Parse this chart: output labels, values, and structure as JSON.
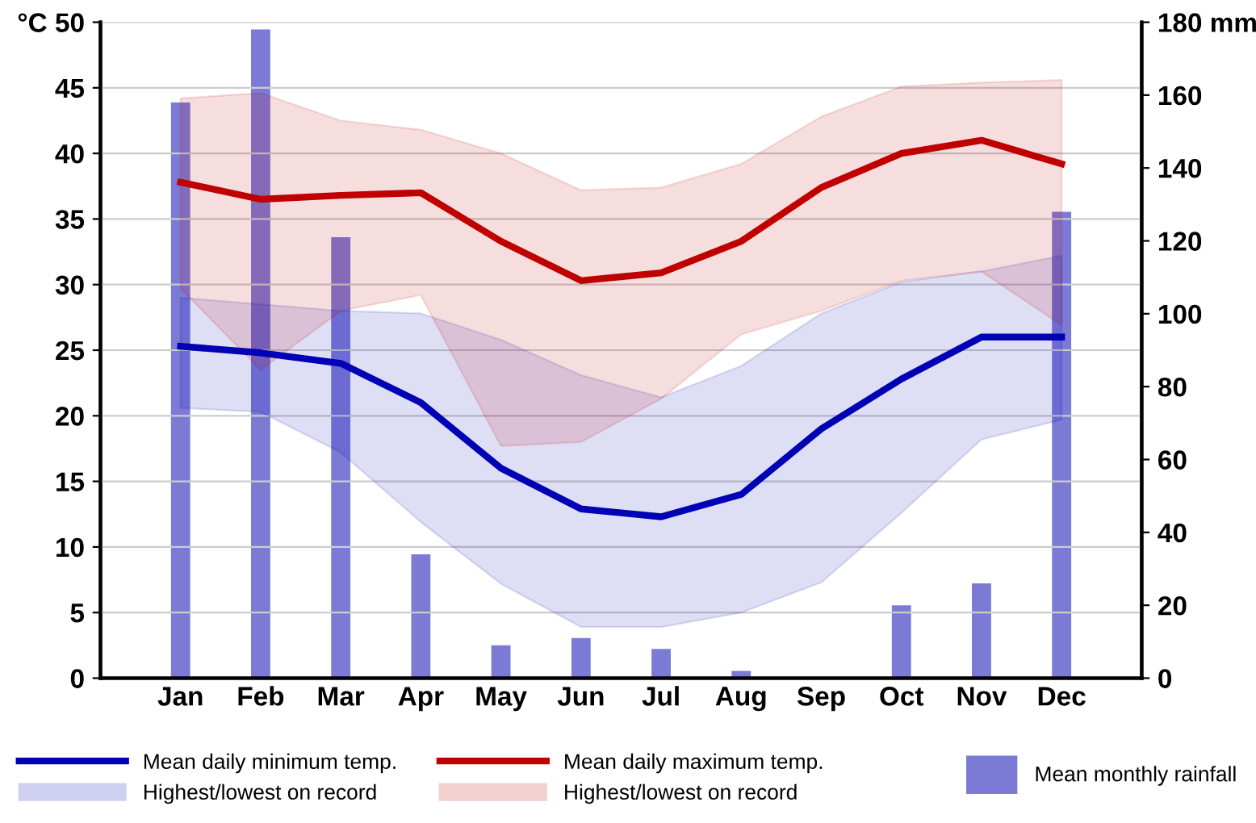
{
  "chart_data": {
    "type": "line",
    "categories": [
      "Jan",
      "Feb",
      "Mar",
      "Apr",
      "May",
      "Jun",
      "Jul",
      "Aug",
      "Sep",
      "Oct",
      "Nov",
      "Dec"
    ],
    "series": [
      {
        "type": "bar",
        "axis": "y2",
        "name": "Mean monthly rainfall",
        "color": "#7b7bd6",
        "values": [
          158,
          178,
          121,
          34,
          9,
          11,
          8,
          2,
          0,
          20,
          26,
          128
        ]
      },
      {
        "name": "Mean daily minimum temp.",
        "color": "#0000b4",
        "values": [
          25.3,
          24.8,
          24,
          21,
          16,
          12.9,
          12.3,
          14,
          19,
          22.8,
          26,
          26
        ],
        "lower": [
          20.6,
          20.3,
          17.2,
          11.9,
          7.2,
          3.9,
          3.9,
          5,
          7.3,
          12.6,
          18.2,
          19.7
        ],
        "upper": [
          29,
          28.5,
          28,
          27.8,
          25.8,
          23.1,
          21.4,
          23.8,
          27.8,
          30.2,
          31,
          32.2
        ]
      },
      {
        "name": "Mean daily maximum temp.",
        "color": "#c00000",
        "values": [
          37.8,
          36.5,
          36.8,
          37,
          33.3,
          30.3,
          30.9,
          33.3,
          37.4,
          40,
          41,
          39.2
        ],
        "lower": [
          29.7,
          23.5,
          28,
          29.2,
          17.7,
          18,
          21.3,
          26.2,
          28,
          30.3,
          31,
          26.9
        ],
        "upper": [
          44.2,
          44.6,
          42.5,
          41.8,
          40,
          37.2,
          37.4,
          39.2,
          42.8,
          45.1,
          45.4,
          45.6
        ]
      }
    ],
    "annotations": [
      "Highest/lowest on record",
      "Highest/lowest on record"
    ],
    "ylim": [
      0,
      50
    ],
    "yticks": [
      0,
      5,
      10,
      15,
      20,
      25,
      30,
      35,
      40,
      45,
      {
        "value": 50,
        "label": "°C 50"
      }
    ],
    "y2lim": [
      0,
      180
    ],
    "y2ticks": [
      0,
      20,
      40,
      60,
      80,
      100,
      120,
      140,
      160,
      {
        "value": 180,
        "label": "180 mm"
      }
    ],
    "grid": true,
    "legend": "bottom",
    "line_style": "solid",
    "marker": "none"
  }
}
